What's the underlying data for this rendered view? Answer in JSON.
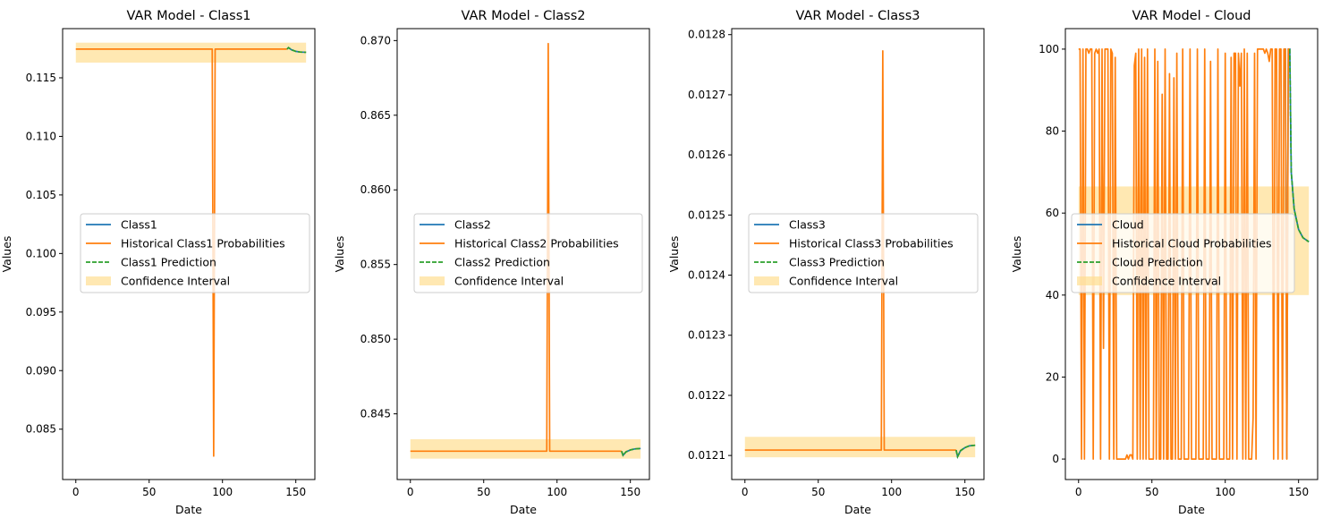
{
  "colors": {
    "series": "#1f77b4",
    "historical": "#ff7f0e",
    "prediction": "#2ca02c",
    "confidence": "#ffdb88"
  },
  "chart_data": [
    {
      "type": "line",
      "title": "VAR Model - Class1",
      "xlabel": "Date",
      "ylabel": "Values",
      "xlim": [
        -9,
        163
      ],
      "ylim": [
        0.0807,
        0.1192
      ],
      "xticks": [
        0,
        50,
        100,
        150
      ],
      "xtick_labels": [
        "0",
        "50",
        "100",
        "150"
      ],
      "yticks": [
        0.085,
        0.09,
        0.095,
        0.1,
        0.105,
        0.11,
        0.115
      ],
      "ytick_labels": [
        "0.085",
        "0.090",
        "0.095",
        "0.100",
        "0.105",
        "0.110",
        "0.115"
      ],
      "grid": false,
      "legend_position": "center",
      "legend": [
        "Class1",
        "Historical Class1 Probabilities",
        "Class1 Prediction",
        "Confidence Interval"
      ],
      "confidence_interval": {
        "x": [
          0,
          157
        ],
        "low": 0.1163,
        "high": 0.118
      },
      "historical": {
        "x": [
          0,
          93,
          94,
          95,
          144
        ],
        "y": [
          0.11745,
          0.11745,
          0.0827,
          0.11745,
          0.11745
        ]
      },
      "series": {
        "x": [
          144,
          145,
          147,
          150,
          153,
          157
        ],
        "y": [
          0.11745,
          0.11758,
          0.1174,
          0.11726,
          0.1172,
          0.11718
        ]
      },
      "prediction": {
        "x": [
          144,
          145,
          147,
          150,
          153,
          157
        ],
        "y": [
          0.11745,
          0.11758,
          0.1174,
          0.11726,
          0.1172,
          0.11718
        ]
      }
    },
    {
      "type": "line",
      "title": "VAR Model - Class2",
      "xlabel": "Date",
      "ylabel": "Values",
      "xlim": [
        -9,
        163
      ],
      "ylim": [
        0.8406,
        0.8708
      ],
      "xticks": [
        0,
        50,
        100,
        150
      ],
      "xtick_labels": [
        "0",
        "50",
        "100",
        "150"
      ],
      "yticks": [
        0.845,
        0.85,
        0.855,
        0.86,
        0.865,
        0.87
      ],
      "ytick_labels": [
        "0.845",
        "0.850",
        "0.855",
        "0.860",
        "0.865",
        "0.870"
      ],
      "grid": false,
      "legend_position": "center",
      "legend": [
        "Class2",
        "Historical Class2 Probabilities",
        "Class2 Prediction",
        "Confidence Interval"
      ],
      "confidence_interval": {
        "x": [
          0,
          157
        ],
        "low": 0.842,
        "high": 0.8433
      },
      "historical": {
        "x": [
          0,
          93,
          94,
          95,
          144
        ],
        "y": [
          0.8425,
          0.8425,
          0.8698,
          0.8425,
          0.8425
        ]
      },
      "series": {
        "x": [
          144,
          145,
          147,
          150,
          153,
          157
        ],
        "y": [
          0.8425,
          0.84222,
          0.84245,
          0.84258,
          0.84265,
          0.84268
        ]
      },
      "prediction": {
        "x": [
          144,
          145,
          147,
          150,
          153,
          157
        ],
        "y": [
          0.8425,
          0.84222,
          0.84245,
          0.84258,
          0.84265,
          0.84268
        ]
      }
    },
    {
      "type": "line",
      "title": "VAR Model - Class3",
      "xlabel": "Date",
      "ylabel": "Values",
      "xlim": [
        -9,
        163
      ],
      "ylim": [
        0.01206,
        0.01281
      ],
      "xticks": [
        0,
        50,
        100,
        150
      ],
      "xtick_labels": [
        "0",
        "50",
        "100",
        "150"
      ],
      "yticks": [
        0.0121,
        0.0122,
        0.0123,
        0.0124,
        0.0125,
        0.0126,
        0.0127,
        0.0128
      ],
      "ytick_labels": [
        "0.0121",
        "0.0122",
        "0.0123",
        "0.0124",
        "0.0125",
        "0.0126",
        "0.0127",
        "0.0128"
      ],
      "grid": false,
      "legend_position": "center",
      "legend": [
        "Class3",
        "Historical Class3 Probabilities",
        "Class3 Prediction",
        "Confidence Interval"
      ],
      "confidence_interval": {
        "x": [
          0,
          157
        ],
        "low": 0.012097,
        "high": 0.012131
      },
      "historical": {
        "x": [
          0,
          93,
          94,
          95,
          144
        ],
        "y": [
          0.012109,
          0.012109,
          0.012773,
          0.012109,
          0.012109
        ]
      },
      "series": {
        "x": [
          144,
          145,
          147,
          150,
          153,
          157
        ],
        "y": [
          0.012109,
          0.012098,
          0.012108,
          0.012113,
          0.012116,
          0.012117
        ]
      },
      "prediction": {
        "x": [
          144,
          145,
          147,
          150,
          153,
          157
        ],
        "y": [
          0.012109,
          0.012098,
          0.012108,
          0.012113,
          0.012116,
          0.012117
        ]
      }
    },
    {
      "type": "line",
      "title": "VAR Model - Cloud",
      "xlabel": "Date",
      "ylabel": "Values",
      "xlim": [
        -9,
        163
      ],
      "ylim": [
        -5,
        105
      ],
      "xticks": [
        0,
        50,
        100,
        150
      ],
      "xtick_labels": [
        "0",
        "50",
        "100",
        "150"
      ],
      "yticks": [
        0,
        20,
        40,
        60,
        80,
        100
      ],
      "ytick_labels": [
        "0",
        "20",
        "40",
        "60",
        "80",
        "100"
      ],
      "grid": false,
      "legend_position": "center",
      "legend": [
        "Cloud",
        "Historical Cloud Probabilities",
        "Cloud Prediction",
        "Confidence Interval"
      ],
      "confidence_interval": {
        "x": [
          0,
          157
        ],
        "low": 40,
        "high": 66.5
      },
      "historical": {
        "x": [
          0,
          1,
          2,
          3,
          4,
          5,
          6,
          7,
          8,
          9,
          10,
          11,
          12,
          13,
          14,
          15,
          16,
          17,
          18,
          19,
          20,
          21,
          22,
          23,
          24,
          25,
          26,
          27,
          28,
          29,
          30,
          31,
          32,
          33,
          34,
          35,
          36,
          37,
          38,
          39,
          40,
          41,
          42,
          43,
          44,
          45,
          46,
          47,
          48,
          49,
          50,
          51,
          52,
          53,
          54,
          55,
          56,
          57,
          58,
          59,
          60,
          61,
          62,
          63,
          64,
          65,
          66,
          67,
          68,
          69,
          70,
          71,
          72,
          73,
          74,
          75,
          76,
          77,
          78,
          79,
          80,
          81,
          82,
          83,
          84,
          85,
          86,
          87,
          88,
          89,
          90,
          91,
          92,
          93,
          94,
          95,
          96,
          97,
          98,
          99,
          100,
          101,
          102,
          103,
          104,
          105,
          106,
          107,
          108,
          109,
          110,
          111,
          112,
          113,
          114,
          115,
          116,
          117,
          118,
          119,
          120,
          121,
          122,
          123,
          124,
          125,
          126,
          127,
          128,
          129,
          130,
          131,
          132,
          133,
          134,
          135,
          136,
          137,
          138,
          139,
          140,
          141,
          142,
          143,
          144
        ],
        "y": [
          100,
          100,
          0,
          100,
          0,
          100,
          100,
          99,
          100,
          100,
          0,
          99,
          100,
          99,
          100,
          0,
          100,
          27,
          100,
          100,
          100,
          0,
          100,
          99,
          0,
          98,
          0,
          0,
          0,
          0,
          0,
          0,
          0,
          1,
          0,
          1,
          1,
          0,
          96,
          99,
          0,
          100,
          0,
          100,
          0,
          98,
          0,
          100,
          0,
          0,
          0,
          0,
          100,
          0,
          97,
          0,
          0,
          89,
          0,
          100,
          0,
          0,
          94,
          0,
          0,
          93,
          0,
          99,
          0,
          0,
          0,
          100,
          0,
          0,
          0,
          0,
          100,
          0,
          0,
          0,
          0,
          100,
          0,
          0,
          0,
          0,
          100,
          0,
          0,
          0,
          97,
          0,
          0,
          0,
          0,
          100,
          0,
          0,
          0,
          0,
          99,
          0,
          0,
          0,
          98,
          0,
          99,
          99,
          0,
          99,
          91,
          99,
          0,
          100,
          0,
          99,
          0,
          0,
          0,
          10,
          99,
          0,
          100,
          100,
          100,
          100,
          100,
          99,
          100,
          99,
          97,
          100,
          100,
          0,
          100,
          100,
          0,
          100,
          100,
          0,
          100,
          100,
          0,
          100,
          100
        ]
      },
      "series": {
        "x": [
          140,
          141,
          142,
          143,
          144,
          145,
          147,
          150,
          153,
          157
        ],
        "y": [
          100,
          100,
          0,
          100,
          100,
          70,
          61,
          56,
          54,
          53
        ]
      },
      "prediction": {
        "x": [
          144,
          145,
          147,
          150,
          153,
          157
        ],
        "y": [
          100,
          70,
          61,
          56,
          54,
          53
        ]
      }
    }
  ]
}
